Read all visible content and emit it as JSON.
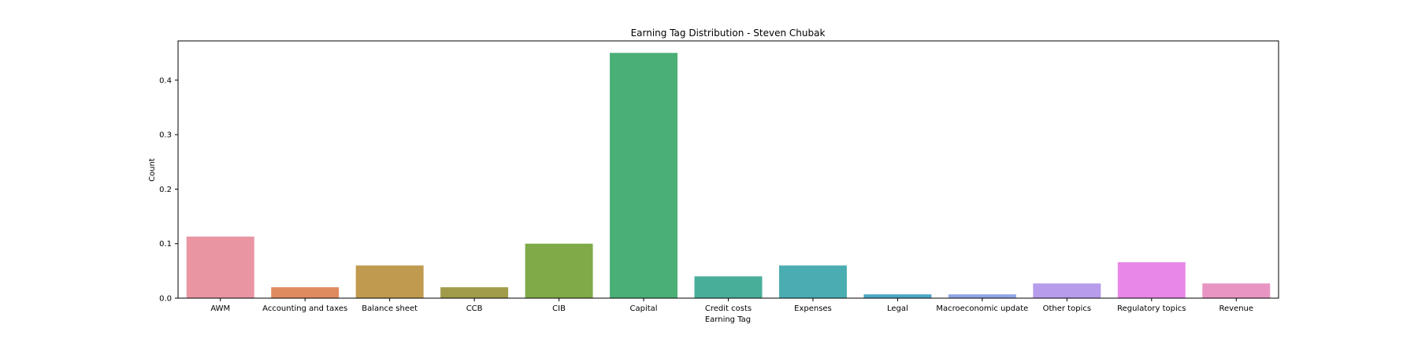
{
  "chart_data": {
    "type": "bar",
    "title": "Earning Tag Distribution - Steven Chubak",
    "xlabel": "Earning Tag",
    "ylabel": "Count",
    "categories": [
      "AWM",
      "Accounting and taxes",
      "Balance sheet",
      "CCB",
      "CIB",
      "Capital",
      "Credit costs",
      "Expenses",
      "Legal",
      "Macroeconomic update",
      "Other topics",
      "Regulatory topics",
      "Revenue"
    ],
    "values": [
      0.113,
      0.02,
      0.06,
      0.02,
      0.1,
      0.45,
      0.04,
      0.06,
      0.007,
      0.007,
      0.027,
      0.066,
      0.027
    ],
    "colors": [
      "#e995a2",
      "#e08b5f",
      "#c09a4e",
      "#a19c4a",
      "#7eaa48",
      "#4aaf77",
      "#48ae99",
      "#4aadb1",
      "#4ba7c5",
      "#8fa6e8",
      "#b69ceb",
      "#e787e6",
      "#e895c4"
    ],
    "yticks": [
      0.0,
      0.1,
      0.2,
      0.3,
      0.4
    ],
    "ytick_labels": [
      "0.0",
      "0.1",
      "0.2",
      "0.3",
      "0.4"
    ],
    "ylim": [
      0,
      0.472
    ],
    "grid": false,
    "legend": false
  }
}
